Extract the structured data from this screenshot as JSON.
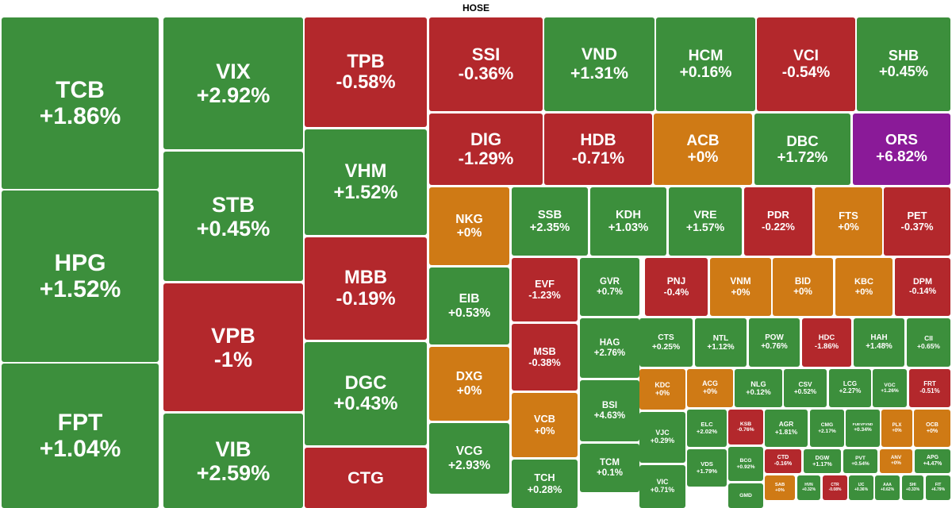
{
  "title": "HOSE",
  "tiles": [
    {
      "ticker": "TCB",
      "change": "+1.86%",
      "color": "#3c8f3c"
    },
    {
      "ticker": "HPG",
      "change": "+1.52%",
      "color": "#3c8f3c"
    },
    {
      "ticker": "FPT",
      "change": "+1.04%",
      "color": "#3c8f3c"
    },
    {
      "ticker": "VIX",
      "change": "+2.92%",
      "color": "#3c8f3c"
    },
    {
      "ticker": "STB",
      "change": "+0.45%",
      "color": "#3c8f3c"
    },
    {
      "ticker": "VPB",
      "change": "-1%",
      "color": "#b3282c"
    },
    {
      "ticker": "VIB",
      "change": "+2.59%",
      "color": "#3c8f3c"
    },
    {
      "ticker": "TPB",
      "change": "-0.58%",
      "color": "#b3282c"
    },
    {
      "ticker": "VHM",
      "change": "+1.52%",
      "color": "#3c8f3c"
    },
    {
      "ticker": "MBB",
      "change": "-0.19%",
      "color": "#b3282c"
    },
    {
      "ticker": "DGC",
      "change": "+0.43%",
      "color": "#3c8f3c"
    },
    {
      "ticker": "CTG",
      "color": "#b3282c"
    },
    {
      "ticker": "SSI",
      "change": "-0.36%",
      "color": "#b3282c"
    },
    {
      "ticker": "VND",
      "change": "+1.31%",
      "color": "#3c8f3c"
    },
    {
      "ticker": "HCM",
      "change": "+0.16%",
      "color": "#3c8f3c"
    },
    {
      "ticker": "VCI",
      "change": "-0.54%",
      "color": "#b3282c"
    },
    {
      "ticker": "SHB",
      "change": "+0.45%",
      "color": "#3c8f3c"
    },
    {
      "ticker": "DIG",
      "change": "-1.29%",
      "color": "#b3282c"
    },
    {
      "ticker": "HDB",
      "change": "-0.71%",
      "color": "#b3282c"
    },
    {
      "ticker": "ACB",
      "change": "+0%",
      "color": "#cf7a15"
    },
    {
      "ticker": "DBC",
      "change": "+1.72%",
      "color": "#3c8f3c"
    },
    {
      "ticker": "ORS",
      "change": "+6.82%",
      "color": "#8a1a98"
    },
    {
      "ticker": "NKG",
      "change": "+0%",
      "color": "#cf7a15"
    },
    {
      "ticker": "SSB",
      "change": "+2.35%",
      "color": "#3c8f3c"
    },
    {
      "ticker": "KDH",
      "change": "+1.03%",
      "color": "#3c8f3c"
    },
    {
      "ticker": "VRE",
      "change": "+1.57%",
      "color": "#3c8f3c"
    },
    {
      "ticker": "PDR",
      "change": "-0.22%",
      "color": "#b3282c"
    },
    {
      "ticker": "FTS",
      "change": "+0%",
      "color": "#cf7a15"
    },
    {
      "ticker": "PET",
      "change": "-0.37%",
      "color": "#b3282c"
    },
    {
      "ticker": "EIB",
      "change": "+0.53%",
      "color": "#3c8f3c"
    },
    {
      "ticker": "DXG",
      "change": "+0%",
      "color": "#cf7a15"
    },
    {
      "ticker": "VCG",
      "change": "+2.93%",
      "color": "#3c8f3c"
    },
    {
      "ticker": "EVF",
      "change": "-1.23%",
      "color": "#b3282c"
    },
    {
      "ticker": "MSB",
      "change": "-0.38%",
      "color": "#b3282c"
    },
    {
      "ticker": "VCB",
      "change": "+0%",
      "color": "#cf7a15"
    },
    {
      "ticker": "TCH",
      "change": "+0.28%",
      "color": "#3c8f3c"
    },
    {
      "ticker": "GVR",
      "change": "+0.7%",
      "color": "#3c8f3c"
    },
    {
      "ticker": "HAG",
      "change": "+2.76%",
      "color": "#3c8f3c"
    },
    {
      "ticker": "BSI",
      "change": "+4.63%",
      "color": "#3c8f3c"
    },
    {
      "ticker": "TCM",
      "change": "+0.1%",
      "color": "#3c8f3c"
    },
    {
      "ticker": "PNJ",
      "change": "-0.4%",
      "color": "#b3282c"
    },
    {
      "ticker": "VNM",
      "change": "+0%",
      "color": "#cf7a15"
    },
    {
      "ticker": "BID",
      "change": "+0%",
      "color": "#cf7a15"
    },
    {
      "ticker": "KBC",
      "change": "+0%",
      "color": "#cf7a15"
    },
    {
      "ticker": "DPM",
      "change": "-0.14%",
      "color": "#b3282c"
    },
    {
      "ticker": "CTS",
      "change": "+0.25%",
      "color": "#3c8f3c"
    },
    {
      "ticker": "NTL",
      "change": "+1.12%",
      "color": "#3c8f3c"
    },
    {
      "ticker": "POW",
      "change": "+0.76%",
      "color": "#3c8f3c"
    },
    {
      "ticker": "HDC",
      "change": "-1.86%",
      "color": "#b3282c"
    },
    {
      "ticker": "HAH",
      "change": "+1.48%",
      "color": "#3c8f3c"
    },
    {
      "ticker": "CII",
      "change": "+0.65%",
      "color": "#3c8f3c"
    },
    {
      "ticker": "KDC",
      "change": "+0%",
      "color": "#cf7a15"
    },
    {
      "ticker": "ACG",
      "change": "+0%",
      "color": "#cf7a15"
    },
    {
      "ticker": "NLG",
      "change": "+0.12%",
      "color": "#3c8f3c"
    },
    {
      "ticker": "CSV",
      "change": "+0.52%",
      "color": "#3c8f3c"
    },
    {
      "ticker": "LCG",
      "change": "+2.27%",
      "color": "#3c8f3c"
    },
    {
      "ticker": "VGC",
      "change": "+1.26%",
      "color": "#3c8f3c"
    },
    {
      "ticker": "FRT",
      "change": "-0.51%",
      "color": "#b3282c"
    },
    {
      "ticker": "VJC",
      "change": "+0.29%",
      "color": "#3c8f3c"
    },
    {
      "ticker": "VIC",
      "change": "+0.71%",
      "color": "#3c8f3c"
    },
    {
      "ticker": "ELC",
      "change": "+2.02%",
      "color": "#3c8f3c"
    },
    {
      "ticker": "VDS",
      "change": "+1.79%",
      "color": "#3c8f3c"
    },
    {
      "ticker": "KSB",
      "change": "-0.76%",
      "color": "#b3282c"
    },
    {
      "ticker": "BCG",
      "change": "+0.92%",
      "color": "#3c8f3c"
    },
    {
      "ticker": "GMD",
      "color": "#3c8f3c"
    },
    {
      "ticker": "AGR",
      "change": "+1.81%",
      "color": "#3c8f3c"
    },
    {
      "ticker": "CMG",
      "change": "+2.17%",
      "color": "#3c8f3c"
    },
    {
      "ticker": "FUEVFVND",
      "change": "+0.34%",
      "color": "#3c8f3c"
    },
    {
      "ticker": "PLX",
      "change": "+0%",
      "color": "#cf7a15"
    },
    {
      "ticker": "OCB",
      "change": "+0%",
      "color": "#cf7a15"
    },
    {
      "ticker": "CTD",
      "change": "-0.16%",
      "color": "#b3282c"
    },
    {
      "ticker": "DGW",
      "change": "+1.17%",
      "color": "#3c8f3c"
    },
    {
      "ticker": "PVT",
      "change": "+0.54%",
      "color": "#3c8f3c"
    },
    {
      "ticker": "ANV",
      "change": "+0%",
      "color": "#cf7a15"
    },
    {
      "ticker": "APG",
      "change": "+4.47%",
      "color": "#3c8f3c"
    },
    {
      "ticker": "SAB",
      "change": "+0%",
      "color": "#cf7a15"
    },
    {
      "ticker": "HVN",
      "change": "+0.32%",
      "color": "#3c8f3c"
    },
    {
      "ticker": "CTR",
      "change": "-0.08%",
      "color": "#b3282c"
    },
    {
      "ticker": "IJC",
      "change": "+0.36%",
      "color": "#3c8f3c"
    },
    {
      "ticker": "AAA",
      "change": "+0.62%",
      "color": "#3c8f3c"
    },
    {
      "ticker": "SHI",
      "change": "+0.33%",
      "color": "#3c8f3c"
    },
    {
      "ticker": "FIT",
      "change": "+6.79%",
      "color": "#3c8f3c"
    }
  ]
}
